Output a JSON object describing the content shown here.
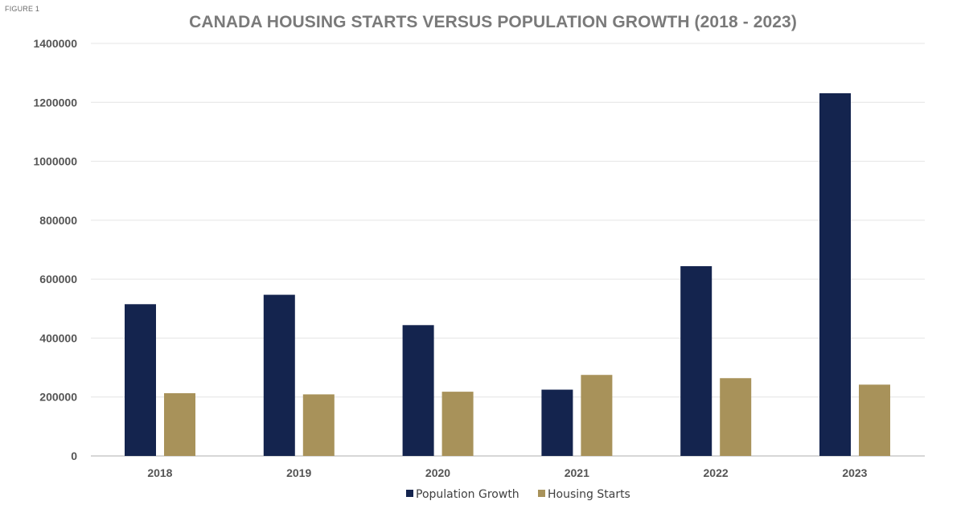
{
  "figure_label": "FIGURE 1",
  "chart_data": {
    "type": "bar",
    "title": "CANADA HOUSING STARTS VERSUS POPULATION GROWTH (2018 - 2023)",
    "xlabel": "",
    "ylabel": "",
    "categories": [
      "2018",
      "2019",
      "2020",
      "2021",
      "2022",
      "2023"
    ],
    "series": [
      {
        "name": "Population Growth",
        "color": "#14244e",
        "values": [
          515000,
          547000,
          444000,
          225000,
          644000,
          1231000
        ]
      },
      {
        "name": "Housing Starts",
        "color": "#a8925a",
        "values": [
          213000,
          209000,
          218000,
          275000,
          264000,
          242000
        ]
      }
    ],
    "ylim": [
      0,
      1400000
    ],
    "yticks": [
      0,
      200000,
      400000,
      600000,
      800000,
      1000000,
      1200000,
      1400000
    ],
    "ytick_labels": [
      "0",
      "200000",
      "400000",
      "600000",
      "800000",
      "1000000",
      "1200000",
      "1400000"
    ],
    "grid": true,
    "legend_position": "bottom-center"
  }
}
